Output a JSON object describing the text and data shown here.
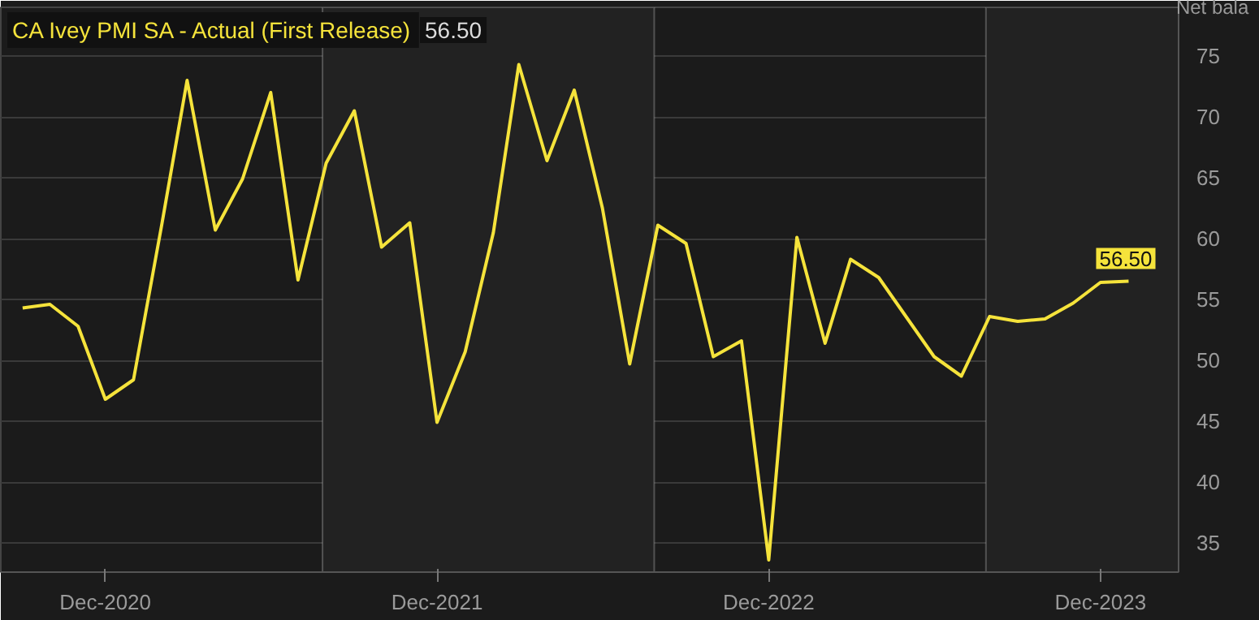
{
  "chart_data": {
    "type": "line",
    "title": "CA Ivey PMI SA - Actual (First Release)",
    "subtitle": "56.50",
    "ylabel": "Net bala",
    "x": [
      "2020-09",
      "2020-10",
      "2020-11",
      "2020-12",
      "2021-01",
      "2021-02",
      "2021-03",
      "2021-04",
      "2021-05",
      "2021-06",
      "2021-07",
      "2021-08",
      "2021-09",
      "2021-10",
      "2021-11",
      "2021-12",
      "2022-01",
      "2022-02",
      "2022-03",
      "2022-04",
      "2022-05",
      "2022-06",
      "2022-07",
      "2022-08",
      "2022-09",
      "2022-10",
      "2022-11",
      "2022-12",
      "2023-01",
      "2023-02",
      "2023-03",
      "2023-04",
      "2023-05",
      "2023-06",
      "2023-07",
      "2023-08",
      "2023-09",
      "2023-10",
      "2023-11",
      "2023-12",
      "2024-01"
    ],
    "series": [
      {
        "color": "#f5e33b",
        "values": [
          54.3,
          54.6,
          52.8,
          46.8,
          48.4,
          61.1,
          73.0,
          60.7,
          64.9,
          72.0,
          56.6,
          66.2,
          70.5,
          59.3,
          61.3,
          44.9,
          50.7,
          60.5,
          74.3,
          66.4,
          72.2,
          62.5,
          49.7,
          61.1,
          59.6,
          50.3,
          51.6,
          33.6,
          60.1,
          51.4,
          58.3,
          56.8,
          53.6,
          50.3,
          48.7,
          53.6,
          53.2,
          53.4,
          54.7,
          56.4,
          56.5
        ]
      }
    ],
    "xlim": [
      "2020-08-08",
      "2024-02-25"
    ],
    "ylim": [
      32.6,
      79
    ],
    "xticks": [
      {
        "value": "2020-12",
        "label": "Dec-2020"
      },
      {
        "value": "2021-12",
        "label": "Dec-2021"
      },
      {
        "value": "2022-12",
        "label": "Dec-2022"
      },
      {
        "value": "2023-12",
        "label": "Dec-2023"
      }
    ],
    "yticks": [
      35,
      40,
      45,
      50,
      55,
      60,
      65,
      70,
      75
    ],
    "bands": [
      {
        "axis": "x",
        "from": "2021-07-28",
        "to": "2022-07-28",
        "color": "#222222"
      },
      {
        "axis": "x",
        "from": "2023-07-28",
        "to": "2024-02-25",
        "color": "#222222"
      }
    ],
    "annotations": [
      {
        "text": "56.50",
        "x": "2024-01",
        "y": 56.5
      }
    ],
    "grid": "y",
    "line_style": "solid",
    "marker": "none"
  }
}
